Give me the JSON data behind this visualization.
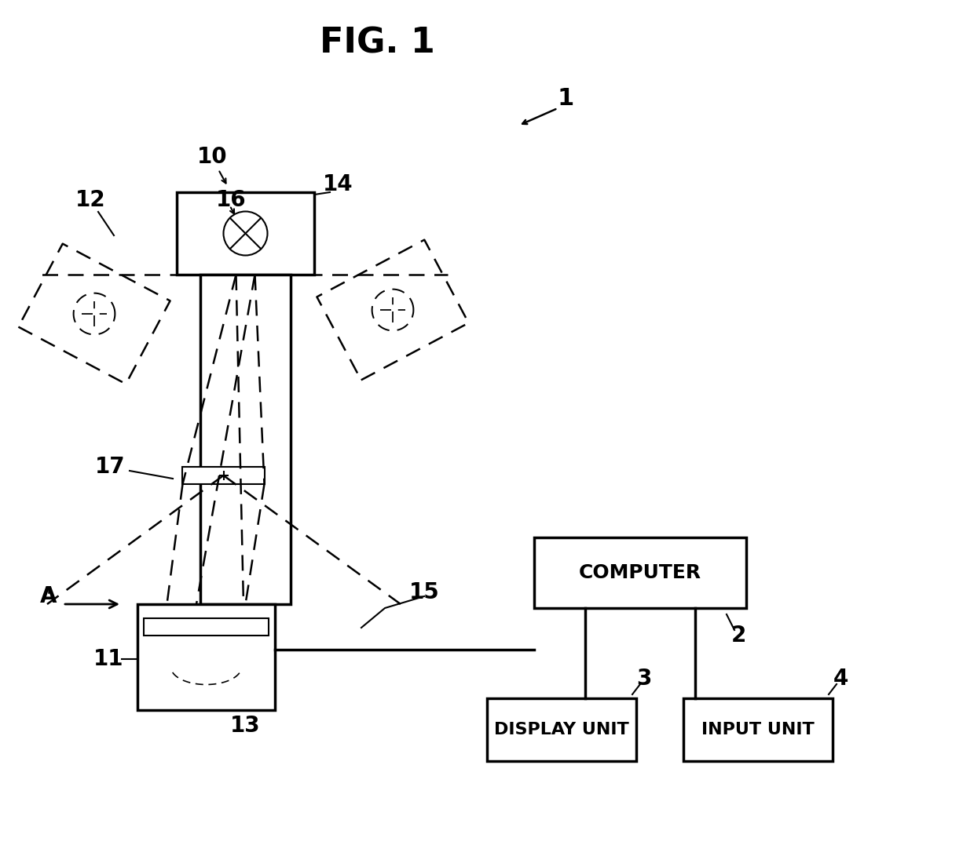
{
  "title": "FIG. 1",
  "bg_color": "#ffffff",
  "label_1": "1",
  "label_2": "2",
  "label_3": "3",
  "label_4": "4",
  "label_10": "10",
  "label_11": "11",
  "label_12": "12",
  "label_13": "13",
  "label_14": "14",
  "label_15": "15",
  "label_16": "16",
  "label_17": "17",
  "label_A": "A",
  "box_computer": "COMPUTER",
  "box_display": "DISPLAY UNIT",
  "box_input": "INPUT UNIT"
}
